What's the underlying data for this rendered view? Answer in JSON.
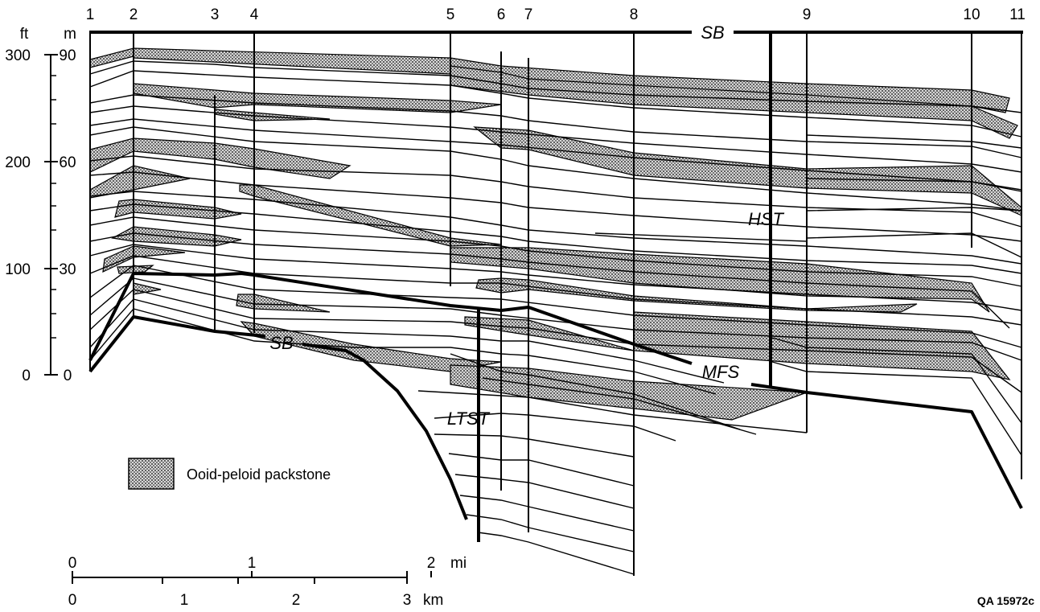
{
  "wells": [
    "1",
    "2",
    "3",
    "4",
    "5",
    "6",
    "7",
    "8",
    "9",
    "10",
    "11"
  ],
  "axes": {
    "ft_unit": "ft",
    "m_unit": "m",
    "ft_ticks": [
      "300",
      "200",
      "100",
      "0"
    ],
    "m_ticks": [
      "90",
      "60",
      "30",
      "0"
    ]
  },
  "surfaces": {
    "sb_top": "SB",
    "sb_base": "SB",
    "mfs": "MFS",
    "hst": "HST",
    "ltst": "LTST"
  },
  "legend": {
    "label": "Ooid-peloid packstone"
  },
  "scale": {
    "mi_ticks": [
      "0",
      "1",
      "2"
    ],
    "mi_unit": "mi",
    "km_ticks": [
      "0",
      "1",
      "2",
      "3"
    ],
    "km_unit": "km"
  },
  "figure_id": "QA 15972c",
  "colors": {
    "ink": "#000000",
    "packstone": "#9a9a9a"
  }
}
